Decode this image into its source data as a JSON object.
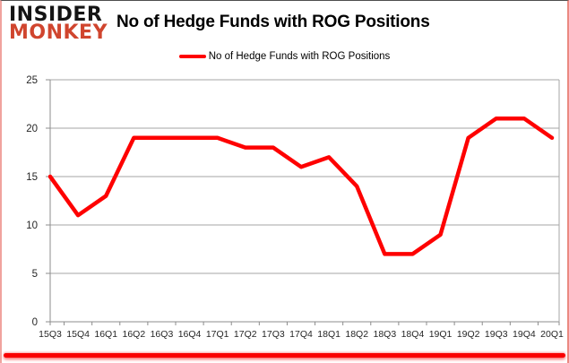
{
  "logo": {
    "line1": "INSIDER",
    "line2": "MONKEY"
  },
  "header": {
    "title": "No of Hedge Funds with ROG Positions"
  },
  "legend": {
    "label": "No of Hedge Funds with ROG Positions"
  },
  "colors": {
    "series": "#fe0000",
    "logo_red": "#d0452e",
    "grid": "#a6a6a6",
    "axis": "#8c8c8c",
    "tick_label": "#262626",
    "accent_bar": "#fa0000"
  },
  "chart_data": {
    "type": "line",
    "title": "No of Hedge Funds with ROG Positions",
    "categories": [
      "15Q3",
      "15Q4",
      "16Q1",
      "16Q2",
      "16Q3",
      "16Q4",
      "17Q1",
      "17Q2",
      "17Q3",
      "17Q4",
      "18Q1",
      "18Q2",
      "18Q3",
      "18Q4",
      "19Q1",
      "19Q2",
      "19Q3",
      "19Q4",
      "20Q1"
    ],
    "series": [
      {
        "name": "No of Hedge Funds with ROG Positions",
        "color": "#fe0000",
        "values": [
          15,
          11,
          13,
          19,
          19,
          19,
          19,
          18,
          18,
          16,
          17,
          14,
          7,
          7,
          9,
          19,
          21,
          21,
          19
        ]
      }
    ],
    "xlabel": "",
    "ylabel": "",
    "ylim": [
      0,
      25
    ],
    "yticks": [
      0,
      5,
      10,
      15,
      20,
      25
    ],
    "grid": true,
    "legend_position": "top"
  }
}
